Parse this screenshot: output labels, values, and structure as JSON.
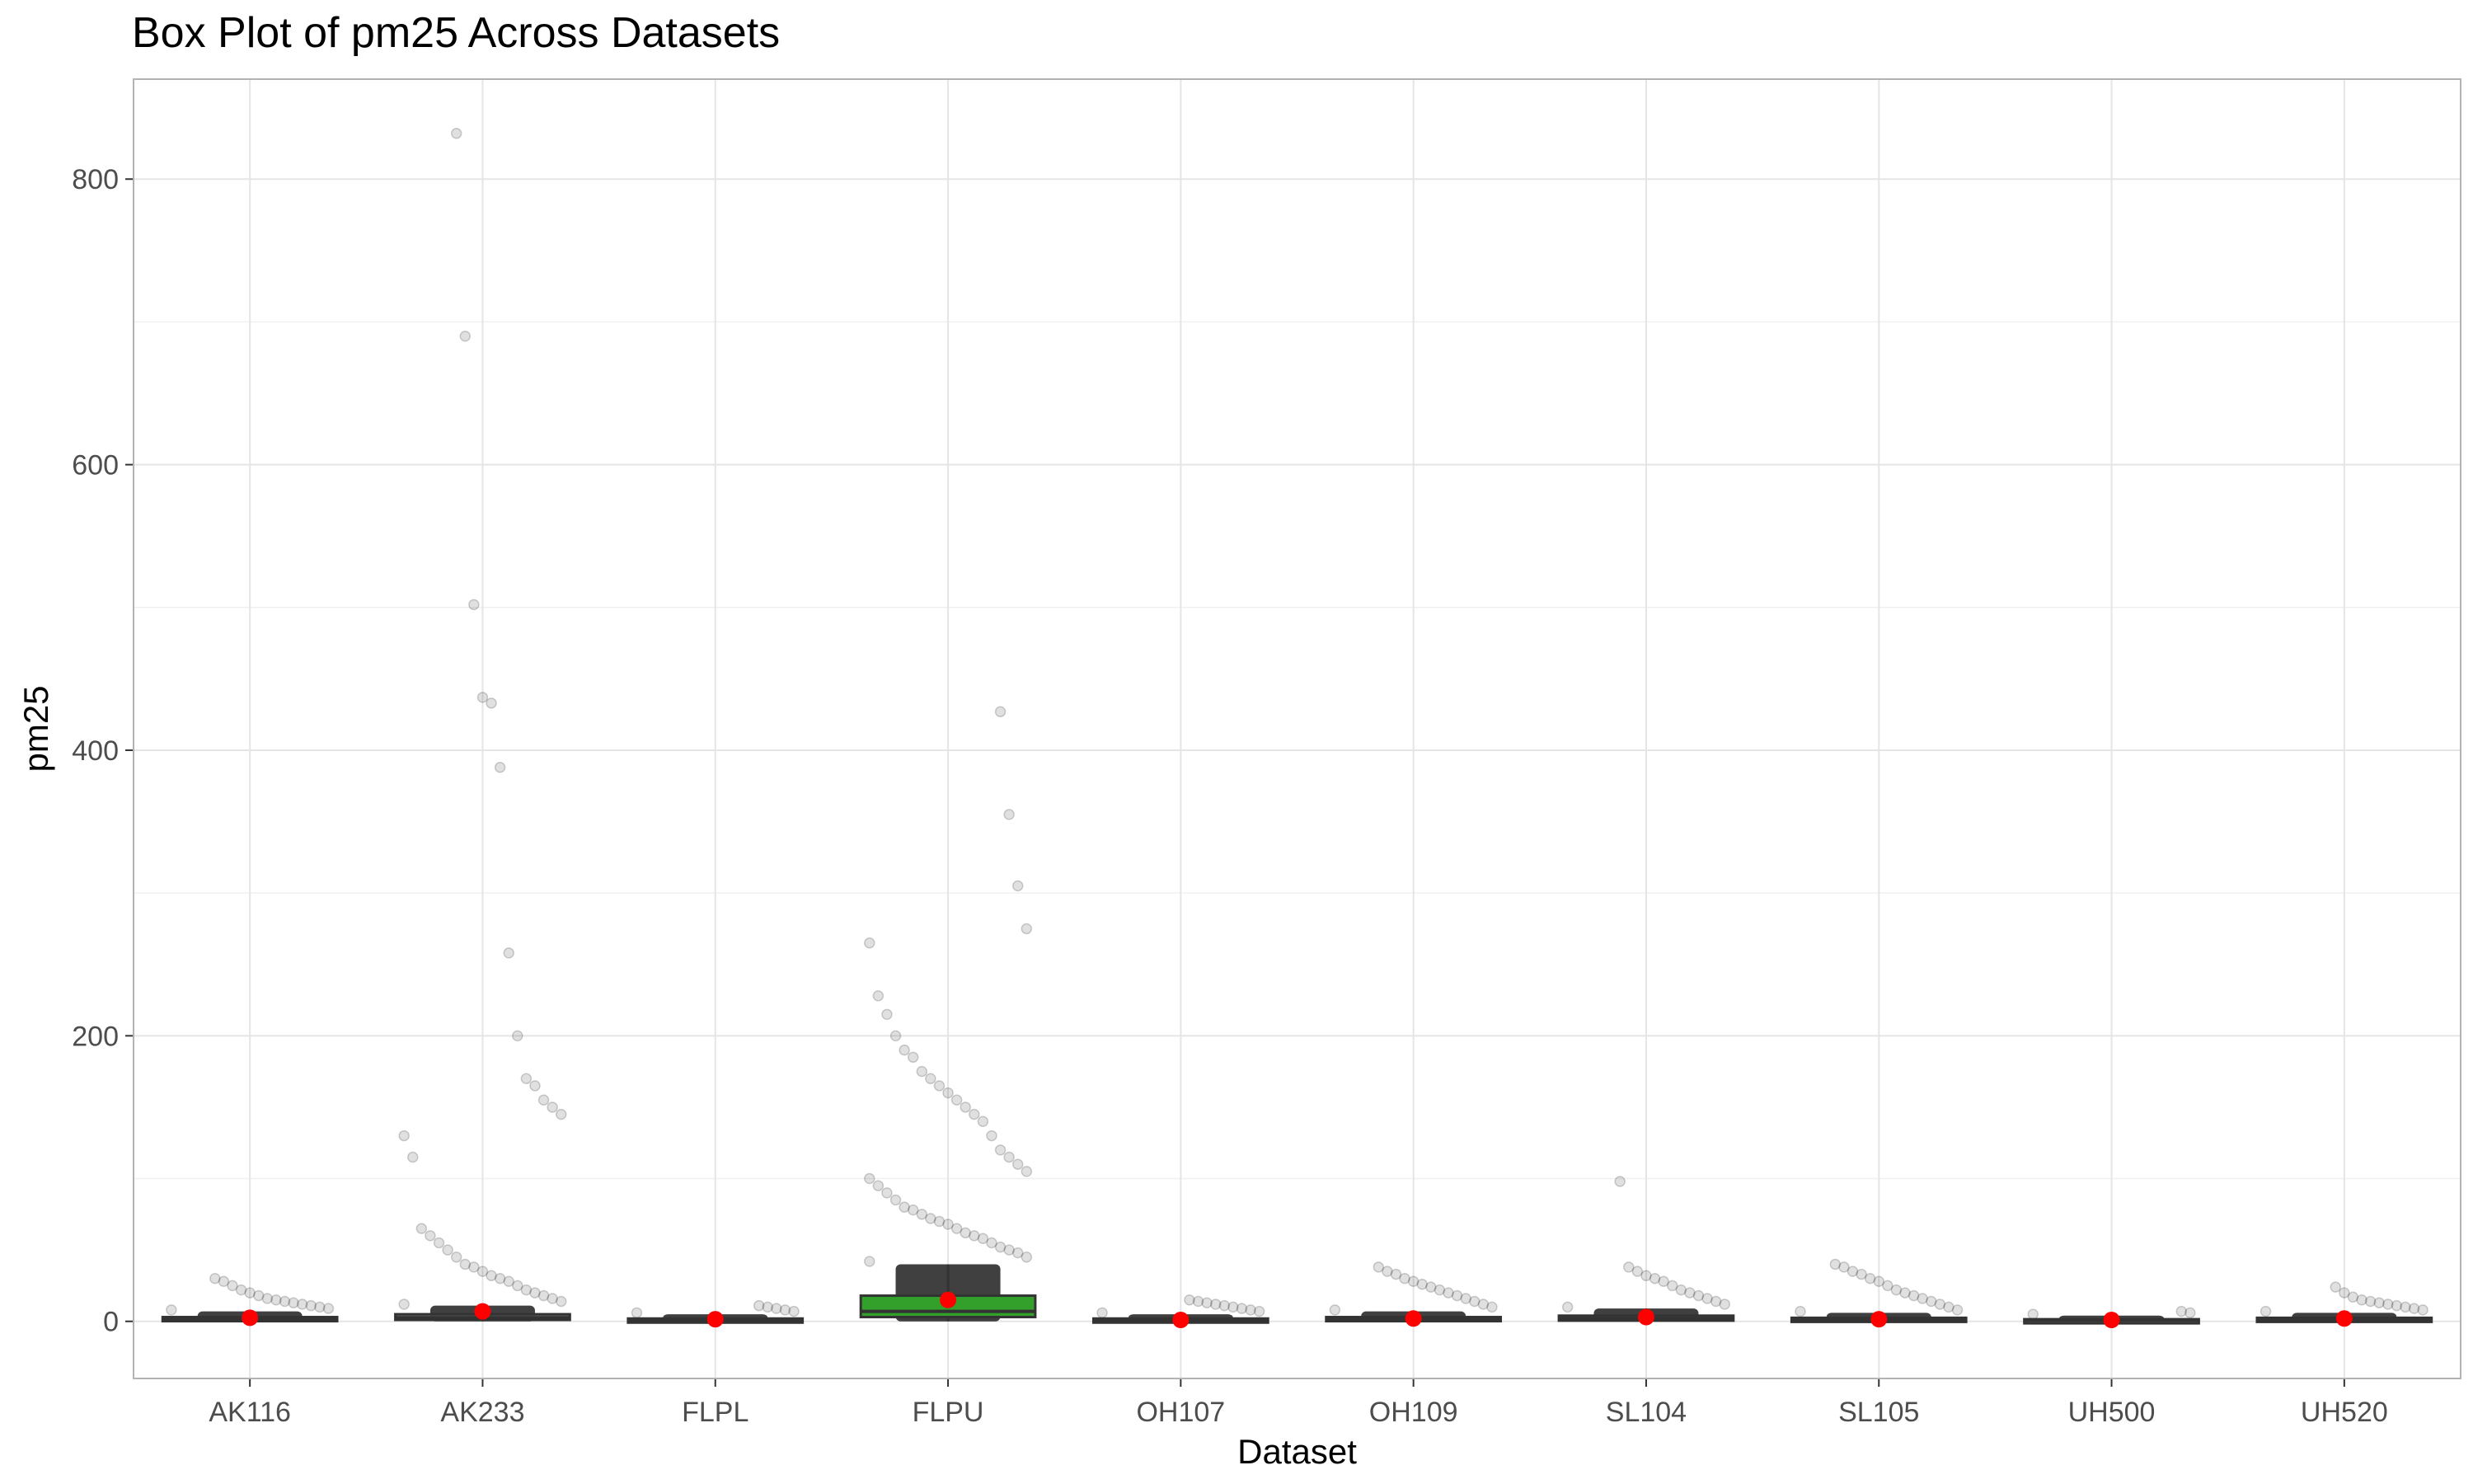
{
  "chart_data": {
    "type": "box",
    "title": "Box Plot of pm25 Across Datasets",
    "xlabel": "Dataset",
    "ylabel": "pm25",
    "ylim": [
      -40,
      870
    ],
    "yticks": [
      0,
      200,
      400,
      600,
      800
    ],
    "grid": true,
    "legend": "none",
    "colors": {
      "box_default": "#595959",
      "box_highlight": "#33a02c",
      "mean_point": "#ff0000",
      "outlier": "#000000",
      "grid": "#e5e5e5",
      "panel_border": "#b3b3b3"
    },
    "categories": [
      "AK116",
      "AK233",
      "FLPL",
      "FLPU",
      "OH107",
      "OH109",
      "SL104",
      "SL105",
      "UH500",
      "UH520"
    ],
    "boxes": [
      {
        "category": "AK116",
        "q1": 0.5,
        "median": 1.5,
        "q3": 3,
        "whisker_low": 0,
        "whisker_high": 7,
        "mean": 2.5,
        "highlight": false,
        "outliers": [
          8,
          9,
          10,
          11,
          12,
          13,
          14,
          15,
          16,
          18,
          20,
          22,
          25,
          28,
          30
        ]
      },
      {
        "category": "AK233",
        "q1": 1,
        "median": 2.5,
        "q3": 5,
        "whisker_low": 0,
        "whisker_high": 11,
        "mean": 7,
        "highlight": false,
        "outliers": [
          12,
          14,
          16,
          18,
          20,
          22,
          25,
          28,
          30,
          32,
          35,
          38,
          40,
          45,
          50,
          55,
          60,
          65,
          115,
          130,
          145,
          150,
          155,
          165,
          170,
          200,
          258,
          388,
          433,
          437,
          502,
          690,
          832
        ]
      },
      {
        "category": "FLPL",
        "q1": 0.3,
        "median": 1,
        "q3": 2,
        "whisker_low": 0,
        "whisker_high": 5,
        "mean": 1.5,
        "highlight": false,
        "outliers": [
          6,
          7,
          8,
          9,
          10,
          11
        ]
      },
      {
        "category": "FLPU",
        "q1": 3,
        "median": 7,
        "q3": 18,
        "whisker_low": 0,
        "whisker_high": 40,
        "mean": 15,
        "highlight": true,
        "outliers": [
          42,
          45,
          48,
          50,
          52,
          55,
          58,
          60,
          62,
          65,
          68,
          70,
          72,
          75,
          78,
          80,
          85,
          90,
          95,
          100,
          105,
          110,
          115,
          120,
          130,
          140,
          145,
          150,
          155,
          160,
          165,
          170,
          175,
          185,
          190,
          200,
          215,
          228,
          265,
          275,
          305,
          355,
          427
        ]
      },
      {
        "category": "OH107",
        "q1": 0.3,
        "median": 1,
        "q3": 2,
        "whisker_low": 0,
        "whisker_high": 5,
        "mean": 1,
        "highlight": false,
        "outliers": [
          6,
          7,
          8,
          9,
          10,
          11,
          12,
          13,
          14,
          15
        ]
      },
      {
        "category": "OH109",
        "q1": 0.5,
        "median": 1.5,
        "q3": 3,
        "whisker_low": 0,
        "whisker_high": 7,
        "mean": 2,
        "highlight": false,
        "outliers": [
          8,
          10,
          12,
          14,
          16,
          18,
          20,
          22,
          24,
          26,
          28,
          30,
          33,
          35,
          38
        ]
      },
      {
        "category": "SL104",
        "q1": 0.5,
        "median": 2,
        "q3": 4,
        "whisker_low": 0,
        "whisker_high": 9,
        "mean": 3,
        "highlight": false,
        "outliers": [
          10,
          12,
          14,
          16,
          18,
          20,
          22,
          25,
          28,
          30,
          32,
          35,
          38,
          98
        ]
      },
      {
        "category": "SL105",
        "q1": 0.3,
        "median": 1,
        "q3": 2.5,
        "whisker_low": 0,
        "whisker_high": 6,
        "mean": 1.5,
        "highlight": false,
        "outliers": [
          7,
          8,
          10,
          12,
          14,
          16,
          18,
          20,
          22,
          25,
          28,
          30,
          33,
          35,
          38,
          40
        ]
      },
      {
        "category": "UH500",
        "q1": 0.2,
        "median": 0.8,
        "q3": 1.5,
        "whisker_low": 0,
        "whisker_high": 4,
        "mean": 1,
        "highlight": false,
        "outliers": [
          5,
          6,
          7
        ]
      },
      {
        "category": "UH520",
        "q1": 0.5,
        "median": 1.5,
        "q3": 2.5,
        "whisker_low": 0,
        "whisker_high": 6,
        "mean": 2,
        "highlight": false,
        "outliers": [
          7,
          8,
          9,
          10,
          11,
          12,
          13,
          14,
          15,
          17,
          20,
          24
        ]
      }
    ]
  }
}
